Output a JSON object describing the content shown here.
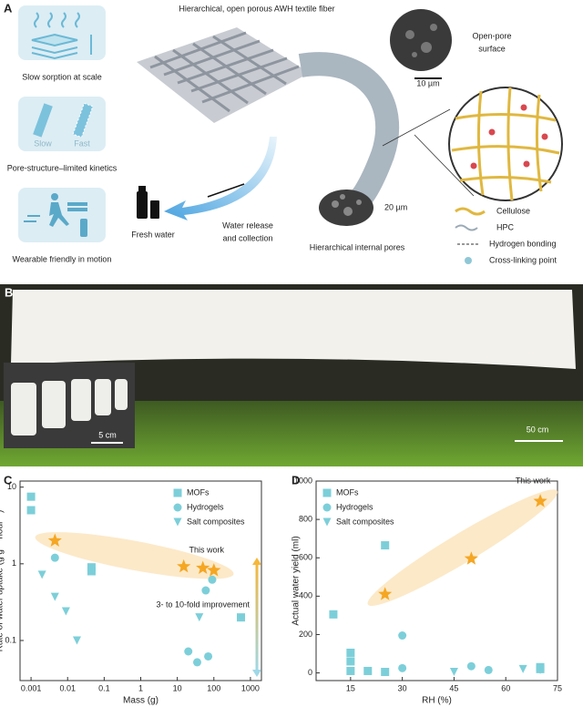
{
  "panel_a": {
    "label": "A",
    "title": "Hierarchical, open porous AWH textile fiber",
    "features": [
      "Slow sorption at scale",
      "Pore-structure–limited kinetics",
      "Wearable friendly in motion"
    ],
    "kinetics_labels": [
      "Slow",
      "Fast"
    ],
    "fresh_water": "Fresh water",
    "release": [
      "Water release",
      "and collection"
    ],
    "open_pore": [
      "Open-pore",
      "surface"
    ],
    "scale_bars": [
      "10 µm",
      "20 µm"
    ],
    "internal": "Hierarchical internal pores",
    "legend": [
      "Cellulose",
      "HPC",
      "Hydrogen bonding",
      "Cross-linking point"
    ]
  },
  "panel_b": {
    "label": "B",
    "scale_bars": [
      "5 cm",
      "50 cm"
    ]
  },
  "chart_data": [
    {
      "label": "C",
      "type": "scatter",
      "xlabel": "Mass (g)",
      "ylabel": "Rate of water uptake (g g⁻¹ hour⁻¹)",
      "xscale": "log",
      "yscale": "log",
      "xlim": [
        0.0005,
        2000
      ],
      "ylim": [
        0.03,
        12
      ],
      "xticks": [
        0.001,
        0.01,
        0.1,
        1,
        10,
        100,
        1000
      ],
      "yticks": [
        0.1,
        1,
        10
      ],
      "legend": "upper right",
      "series": [
        {
          "name": "MOFs",
          "marker": "square",
          "color": "#7ccfd9",
          "x": [
            0.001,
            0.001,
            0.045,
            0.045,
            550
          ],
          "values": [
            7.5,
            5.0,
            0.9,
            0.8,
            0.2
          ]
        },
        {
          "name": "Hydrogels",
          "marker": "circle",
          "color": "#7ccfd9",
          "x": [
            0.0045,
            60,
            90,
            20,
            35,
            70
          ],
          "values": [
            1.2,
            0.45,
            0.62,
            0.072,
            0.052,
            0.062
          ]
        },
        {
          "name": "Salt composites",
          "marker": "triangle",
          "color": "#7ccfd9",
          "x": [
            0.002,
            0.0045,
            0.009,
            0.018,
            40
          ],
          "values": [
            0.72,
            0.37,
            0.24,
            0.1,
            0.2
          ]
        }
      ],
      "highlight": {
        "name": "This work",
        "marker": "star",
        "color": "#f5a623",
        "x": [
          0.0045,
          15,
          50,
          100
        ],
        "values": [
          2.0,
          0.92,
          0.88,
          0.82
        ]
      },
      "annotation": "3- to 10-fold improvement"
    },
    {
      "label": "D",
      "type": "scatter",
      "xlabel": "RH (%)",
      "ylabel": "Actual water yield (ml)",
      "xlim": [
        5,
        75
      ],
      "ylim": [
        -40,
        1000
      ],
      "xticks": [
        15,
        30,
        45,
        60,
        75
      ],
      "yticks": [
        0,
        200,
        400,
        600,
        800,
        1000
      ],
      "legend": "upper left",
      "series": [
        {
          "name": "MOFs",
          "marker": "square",
          "color": "#7ccfd9",
          "x": [
            10,
            15,
            15,
            15,
            20,
            25,
            25,
            70,
            70
          ],
          "values": [
            305,
            105,
            60,
            10,
            10,
            665,
            5,
            30,
            20
          ]
        },
        {
          "name": "Hydrogels",
          "marker": "circle",
          "color": "#7ccfd9",
          "x": [
            30,
            30,
            50,
            55
          ],
          "values": [
            195,
            25,
            35,
            15
          ]
        },
        {
          "name": "Salt composites",
          "marker": "triangle",
          "color": "#7ccfd9",
          "x": [
            45,
            65,
            70
          ],
          "values": [
            5,
            20,
            15
          ]
        }
      ],
      "highlight": {
        "name": "This work",
        "marker": "star",
        "color": "#f5a623",
        "x": [
          25,
          50,
          70
        ],
        "values": [
          410,
          595,
          895
        ]
      }
    }
  ]
}
